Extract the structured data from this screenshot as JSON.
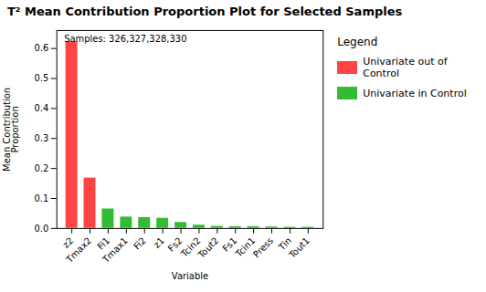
{
  "chart_data": {
    "type": "bar",
    "title": "T² Mean Contribution Proportion Plot for Selected Samples",
    "subtitle": "Samples: 326,327,328,330",
    "xlabel": "Variable",
    "ylabel": "Mean Contribution\nProportion",
    "categories": [
      "z2",
      "Tmax2",
      "Fi1",
      "Tmax1",
      "Fi2",
      "z1",
      "Fs2",
      "Tcin2",
      "Tout2",
      "Fs1",
      "Tcin1",
      "Press",
      "Tin",
      "Tout1"
    ],
    "values": [
      0.623,
      0.168,
      0.065,
      0.038,
      0.036,
      0.034,
      0.02,
      0.011,
      0.007,
      0.006,
      0.006,
      0.005,
      0.004,
      0.004
    ],
    "colors": [
      "#FF4444",
      "#FF4444",
      "#33BB33",
      "#33BB33",
      "#33BB33",
      "#33BB33",
      "#33BB33",
      "#33BB33",
      "#33BB33",
      "#33BB33",
      "#33BB33",
      "#33BB33",
      "#33BB33",
      "#33BB33"
    ],
    "legend": "right",
    "legend_title": "Legend",
    "legend_entries": [
      {
        "name": "Univariate out of Control",
        "color": "#FF4444"
      },
      {
        "name": "Univariate in Control",
        "color": "#33BB33"
      }
    ],
    "ylim": [
      0,
      0.66
    ],
    "yticks": [
      {
        "value": 0,
        "label": "0.0"
      },
      0.1,
      0.2,
      0.3,
      0.4,
      0.5,
      0.6
    ],
    "grid": false
  }
}
